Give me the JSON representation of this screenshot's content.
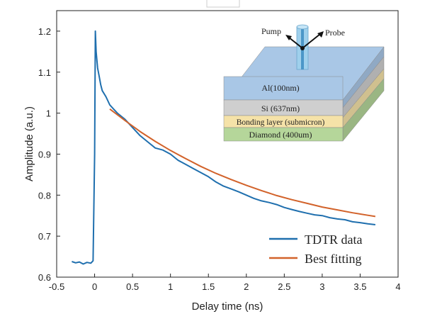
{
  "chart_data": {
    "type": "line",
    "xlabel": "Delay time (ns)",
    "ylabel": "Amplitude (a.u.)",
    "xlim": [
      -0.5,
      4
    ],
    "ylim": [
      0.6,
      1.25
    ],
    "xticks": [
      -0.5,
      0,
      0.5,
      1,
      1.5,
      2,
      2.5,
      3,
      3.5,
      4
    ],
    "xtick_labels": [
      "-0.5",
      "0",
      "0.5",
      "1",
      "1.5",
      "2",
      "2.5",
      "3",
      "3.5",
      "4"
    ],
    "yticks": [
      0.6,
      0.7,
      0.8,
      0.9,
      1.0,
      1.1,
      1.2
    ],
    "ytick_labels": [
      "0.6",
      "0.7",
      "0.8",
      "0.9",
      "1",
      "1.1",
      "1.2"
    ],
    "grid": false,
    "legend_position": "bottom-right",
    "series": [
      {
        "name": "TDTR data",
        "color": "#1f6fae",
        "x": [
          -0.3,
          -0.25,
          -0.2,
          -0.15,
          -0.1,
          -0.05,
          -0.02,
          0.0,
          0.01,
          0.02,
          0.04,
          0.06,
          0.08,
          0.1,
          0.15,
          0.2,
          0.25,
          0.3,
          0.4,
          0.5,
          0.6,
          0.7,
          0.8,
          0.9,
          1.0,
          1.1,
          1.2,
          1.3,
          1.4,
          1.5,
          1.6,
          1.7,
          1.8,
          1.9,
          2.0,
          2.1,
          2.2,
          2.3,
          2.4,
          2.5,
          2.6,
          2.7,
          2.8,
          2.9,
          3.0,
          3.1,
          3.2,
          3.3,
          3.4,
          3.5,
          3.6,
          3.7
        ],
        "values": [
          0.638,
          0.635,
          0.637,
          0.632,
          0.636,
          0.634,
          0.64,
          0.9,
          1.2,
          1.15,
          1.11,
          1.09,
          1.07,
          1.055,
          1.04,
          1.02,
          1.01,
          1.0,
          0.985,
          0.965,
          0.945,
          0.93,
          0.915,
          0.91,
          0.9,
          0.885,
          0.875,
          0.865,
          0.855,
          0.845,
          0.832,
          0.822,
          0.815,
          0.808,
          0.8,
          0.792,
          0.786,
          0.782,
          0.777,
          0.77,
          0.765,
          0.76,
          0.756,
          0.752,
          0.75,
          0.745,
          0.742,
          0.74,
          0.735,
          0.733,
          0.73,
          0.728
        ]
      },
      {
        "name": "Best fitting",
        "color": "#d2622a",
        "x": [
          0.2,
          0.4,
          0.6,
          0.8,
          1.0,
          1.2,
          1.4,
          1.6,
          1.8,
          2.0,
          2.2,
          2.4,
          2.6,
          2.8,
          3.0,
          3.2,
          3.4,
          3.6,
          3.7
        ],
        "values": [
          1.01,
          0.982,
          0.955,
          0.931,
          0.909,
          0.889,
          0.87,
          0.853,
          0.838,
          0.824,
          0.811,
          0.799,
          0.789,
          0.78,
          0.771,
          0.764,
          0.757,
          0.751,
          0.748
        ]
      }
    ]
  },
  "inset": {
    "pump_label": "Pump",
    "probe_label": "Probe",
    "layers": [
      {
        "label": "Al(100nm)",
        "color": "#a9c7e6"
      },
      {
        "label": "Si (637nm)",
        "color": "#cfcfcf"
      },
      {
        "label": "Bonding layer (submicron)",
        "color": "#f5e2a8"
      },
      {
        "label": "Diamond (400um)",
        "color": "#b5d69a"
      }
    ]
  }
}
